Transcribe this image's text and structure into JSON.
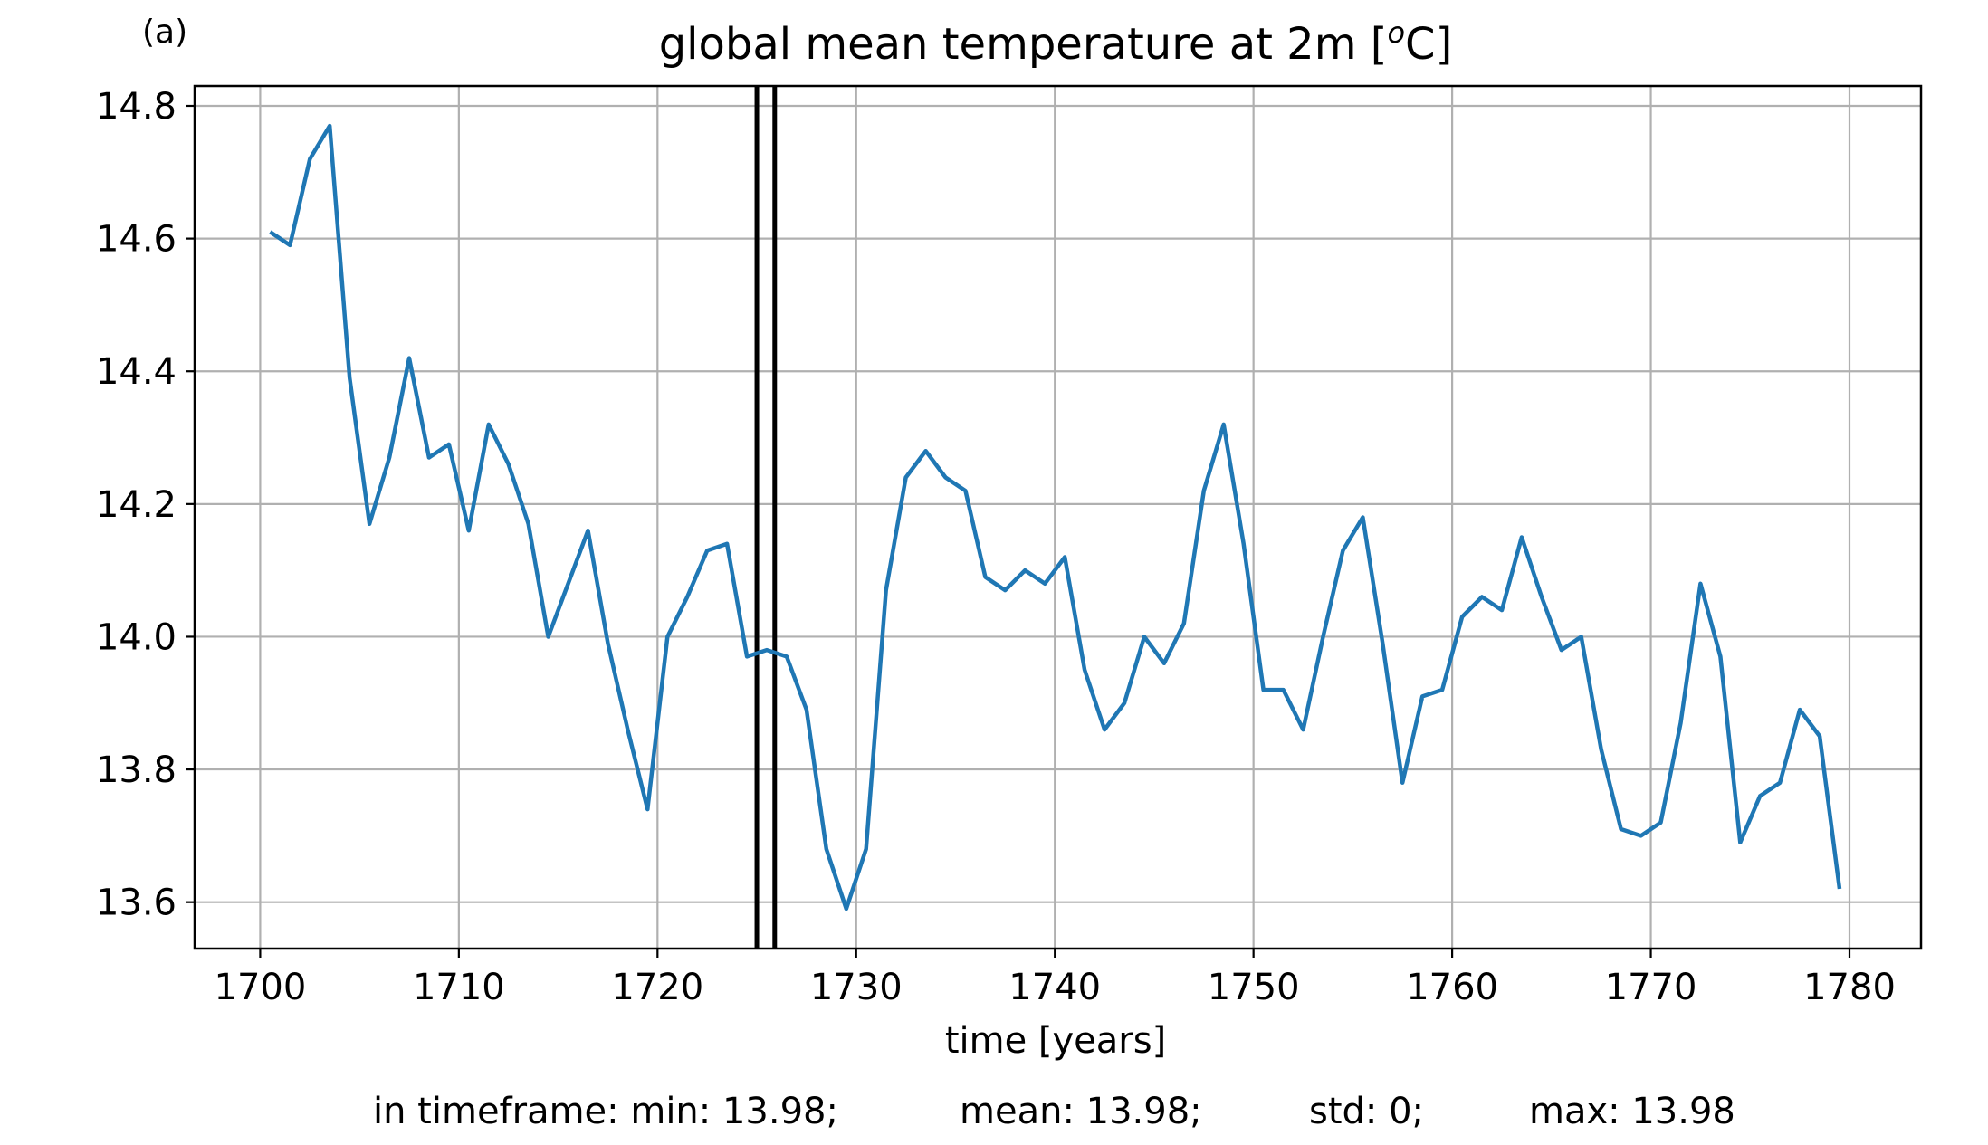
{
  "panel_label": "(a)",
  "chart_data": {
    "type": "line",
    "title": "global mean temperature at 2m [",
    "title_sup": "o",
    "title_tail": "C]",
    "xlabel": "time [years]",
    "ylabel": "",
    "xlim": [
      1696.7,
      1783.6
    ],
    "ylim": [
      13.53,
      14.83
    ],
    "xticks": [
      1700,
      1710,
      1720,
      1730,
      1740,
      1750,
      1760,
      1770,
      1780
    ],
    "yticks": [
      13.6,
      13.8,
      14.0,
      14.2,
      14.4,
      14.6,
      14.8
    ],
    "ytick_labels": [
      "13.6",
      "13.8",
      "14.0",
      "14.2",
      "14.4",
      "14.6",
      "14.8"
    ],
    "grid": true,
    "series": [
      {
        "color": "#1f77b4",
        "x": [
          1700.5,
          1701.5,
          1702.5,
          1703.5,
          1704.5,
          1705.5,
          1706.5,
          1707.5,
          1708.5,
          1709.5,
          1710.5,
          1711.5,
          1712.5,
          1713.5,
          1714.5,
          1715.5,
          1716.5,
          1717.5,
          1718.5,
          1719.5,
          1720.5,
          1721.5,
          1722.5,
          1723.5,
          1724.5,
          1725.5,
          1726.5,
          1727.5,
          1728.5,
          1729.5,
          1730.5,
          1731.5,
          1732.5,
          1733.5,
          1734.5,
          1735.5,
          1736.5,
          1737.5,
          1738.5,
          1739.5,
          1740.5,
          1741.5,
          1742.5,
          1743.5,
          1744.5,
          1745.5,
          1746.5,
          1747.5,
          1748.5,
          1749.5,
          1750.5,
          1751.5,
          1752.5,
          1753.5,
          1754.5,
          1755.5,
          1756.5,
          1757.5,
          1758.5,
          1759.5,
          1760.5,
          1761.5,
          1762.5,
          1763.5,
          1764.5,
          1765.5,
          1766.5,
          1767.5,
          1768.5,
          1769.5,
          1770.5,
          1771.5,
          1772.5,
          1773.5,
          1774.5,
          1775.5,
          1776.5,
          1777.5,
          1778.5,
          1779.5
        ],
        "y": [
          14.61,
          14.59,
          14.72,
          14.77,
          14.39,
          14.17,
          14.27,
          14.42,
          14.27,
          14.29,
          14.16,
          14.32,
          14.26,
          14.17,
          14.0,
          14.08,
          14.16,
          13.99,
          13.86,
          13.74,
          14.0,
          14.06,
          14.13,
          14.14,
          13.97,
          13.98,
          13.97,
          13.89,
          13.68,
          13.59,
          13.68,
          14.07,
          14.24,
          14.28,
          14.24,
          14.22,
          14.09,
          14.07,
          14.1,
          14.08,
          14.12,
          13.95,
          13.86,
          13.9,
          14.0,
          13.96,
          14.02,
          14.22,
          14.32,
          14.14,
          13.92,
          13.92,
          13.86,
          14.0,
          14.13,
          14.18,
          13.99,
          13.78,
          13.91,
          13.92,
          14.03,
          14.06,
          14.04,
          14.15,
          14.06,
          13.98,
          14.0,
          13.83,
          13.71,
          13.7,
          13.72,
          13.87,
          14.08,
          13.97,
          13.69,
          13.76,
          13.78,
          13.89,
          13.85,
          13.62
        ]
      }
    ],
    "annotations": [
      {
        "type": "vline",
        "x": 1725.0,
        "color": "#000000"
      },
      {
        "type": "vline",
        "x": 1725.9,
        "color": "#000000"
      }
    ]
  },
  "stats": {
    "min": "in timeframe: min: 13.98;",
    "mean": "mean: 13.98;",
    "std": "std: 0;",
    "max": "max: 13.98"
  }
}
